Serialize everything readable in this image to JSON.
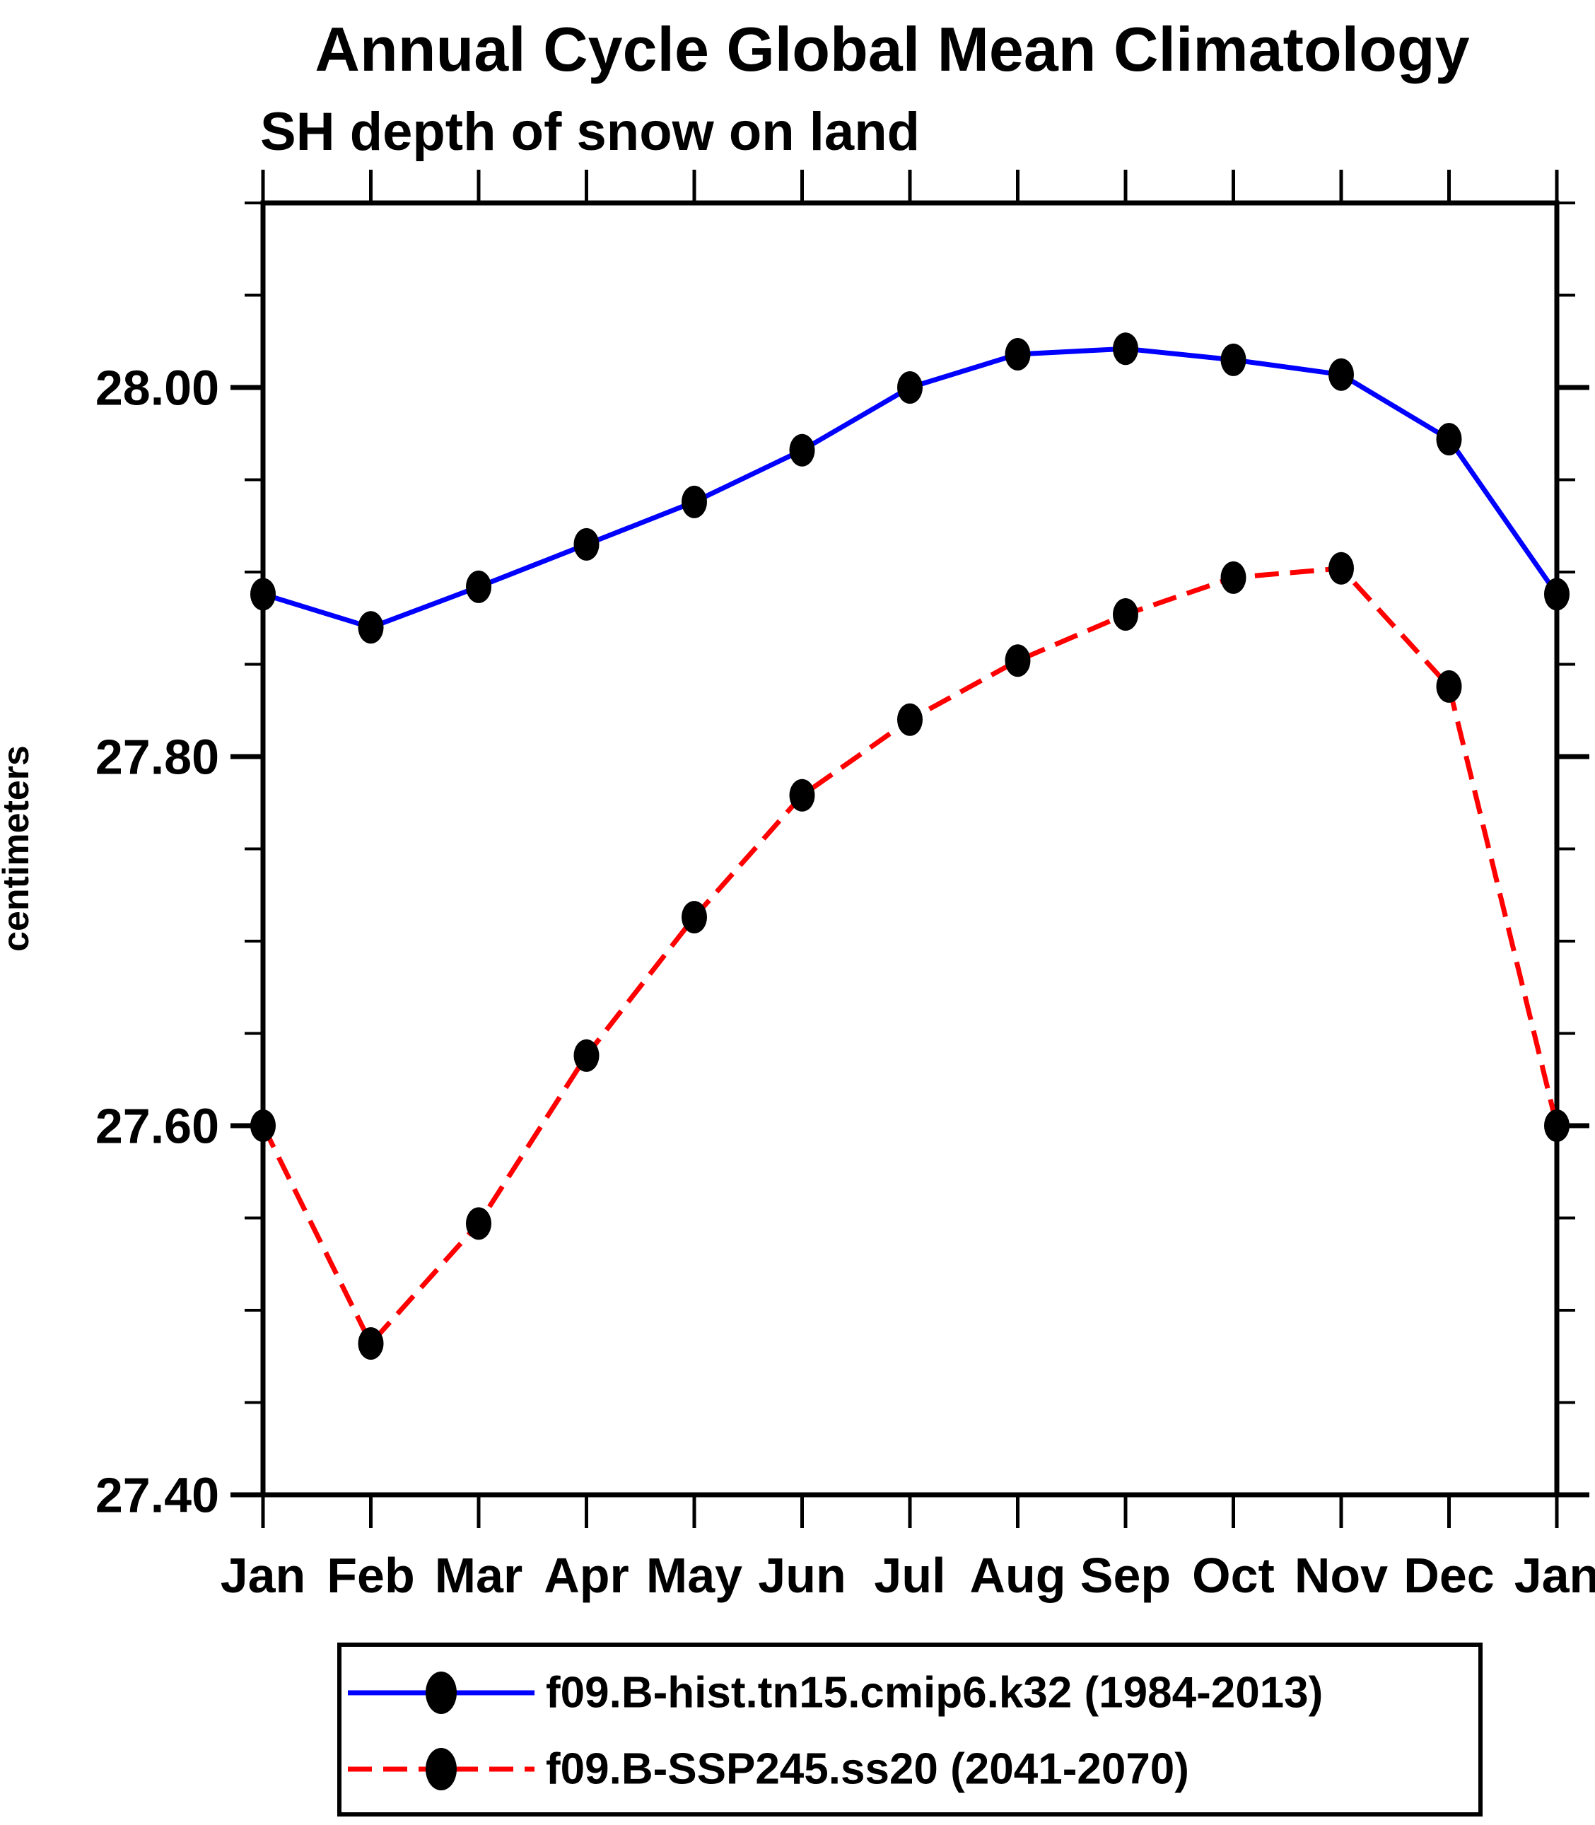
{
  "page": {
    "background": "#FFFFFF",
    "text_color": "#000000"
  },
  "chart_data": {
    "type": "line",
    "title": "Annual Cycle Global Mean Climatology",
    "subtitle": "SH depth of snow on land",
    "ylabel": "centimeters",
    "x_categories": [
      "Jan",
      "Feb",
      "Mar",
      "Apr",
      "May",
      "Jun",
      "Jul",
      "Aug",
      "Sep",
      "Oct",
      "Nov",
      "Dec",
      "Jan"
    ],
    "ylim": [
      27.4,
      28.1
    ],
    "y_major_tick_step": 0.2,
    "y_minor_tick_step": 0.05,
    "y_major_tick_labels": [
      "27.40",
      "27.60",
      "27.80",
      "28.00"
    ],
    "grid": false,
    "legend_position": "bottom",
    "axis_color": "#000000",
    "marker_color": "#000000",
    "series": [
      {
        "name": "f09.B-hist.tn15.cmip6.k32 (1984-2013)",
        "color": "#0000FF",
        "line_style": "solid",
        "marker": "filled-circle",
        "values": [
          27.888,
          27.87,
          27.892,
          27.915,
          27.938,
          27.966,
          28.0,
          28.018,
          28.021,
          28.015,
          28.007,
          27.972,
          27.888
        ]
      },
      {
        "name": "f09.B-SSP245.ss20 (2041-2070)",
        "color": "#FF0000",
        "line_style": "dashed",
        "marker": "filled-circle",
        "values": [
          27.6,
          27.482,
          27.547,
          27.638,
          27.713,
          27.779,
          27.82,
          27.852,
          27.877,
          27.897,
          27.902,
          27.838,
          27.6
        ]
      }
    ]
  }
}
